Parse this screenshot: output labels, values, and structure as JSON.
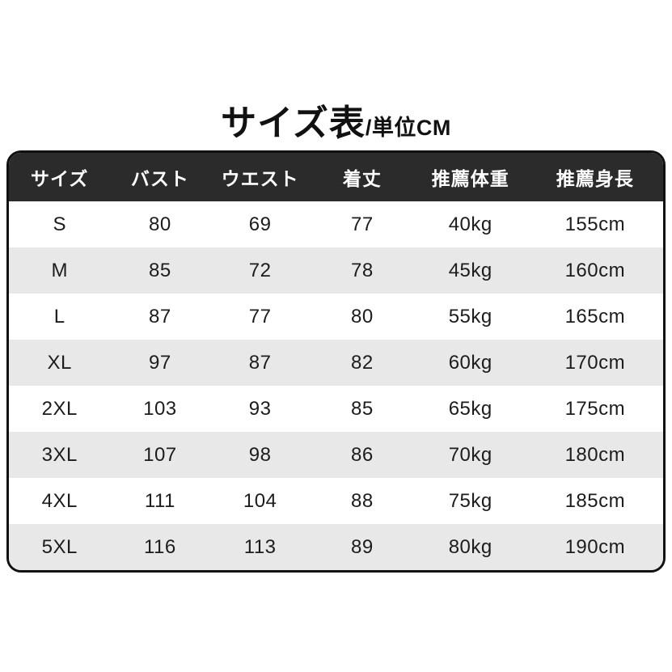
{
  "title": {
    "main": "サイズ表",
    "unit": "/単位CM"
  },
  "colors": {
    "header_bg": "#2b2b2b",
    "header_text": "#ffffff",
    "row_bg": "#ffffff",
    "row_alt_bg": "#e8e8e8",
    "table_border": "#111111",
    "body_text": "#1c1c1c",
    "title_text": "#111111"
  },
  "chart_data": {
    "type": "table",
    "title": "サイズ表",
    "subtitle": "単位CM",
    "legend_position": "none",
    "grid": false,
    "columns": [
      "サイズ",
      "バスト",
      "ウエスト",
      "着丈",
      "推薦体重",
      "推薦身長"
    ],
    "rows": [
      [
        "S",
        "80",
        "69",
        "77",
        "40kg",
        "155cm"
      ],
      [
        "M",
        "85",
        "72",
        "78",
        "45kg",
        "160cm"
      ],
      [
        "L",
        "87",
        "77",
        "80",
        "55kg",
        "165cm"
      ],
      [
        "XL",
        "97",
        "87",
        "82",
        "60kg",
        "170cm"
      ],
      [
        "2XL",
        "103",
        "93",
        "85",
        "65kg",
        "175cm"
      ],
      [
        "3XL",
        "107",
        "98",
        "86",
        "70kg",
        "180cm"
      ],
      [
        "4XL",
        "111",
        "104",
        "88",
        "75kg",
        "185cm"
      ],
      [
        "5XL",
        "116",
        "113",
        "89",
        "80kg",
        "190cm"
      ]
    ]
  }
}
